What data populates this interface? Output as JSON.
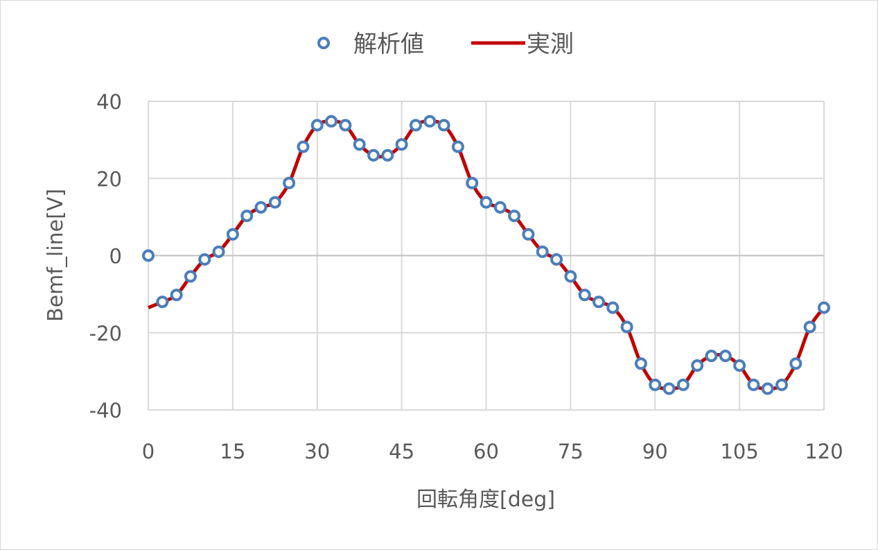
{
  "chart_data": {
    "type": "line",
    "title": "",
    "xlabel": "回転角度[deg]",
    "ylabel": "Bemf_line[V]",
    "xlim": [
      0,
      120
    ],
    "ylim": [
      -40,
      40
    ],
    "x_ticks": [
      0,
      15,
      30,
      45,
      60,
      75,
      90,
      105,
      120
    ],
    "y_ticks": [
      40,
      20,
      0,
      -20,
      -40
    ],
    "x_tick_labels": [
      "0",
      "15",
      "30",
      "45",
      "60",
      "75",
      "90",
      "105",
      "120"
    ],
    "y_tick_labels": [
      "40",
      "20",
      "0",
      "-20",
      "-40"
    ],
    "grid": true,
    "legend_position": "top",
    "series": [
      {
        "name": "解析値",
        "kind": "scatter",
        "marker": "open-circle",
        "color": "#4a7ebb",
        "x": [
          0,
          2.5,
          5,
          7.5,
          10,
          12.5,
          15,
          17.5,
          20,
          22.5,
          25,
          27.5,
          30,
          32.5,
          35,
          37.5,
          40,
          42.5,
          45,
          47.5,
          50,
          52.5,
          55,
          57.5,
          60,
          62.5,
          65,
          67.5,
          70,
          72.5,
          75,
          77.5,
          80,
          82.5,
          85,
          87.5,
          90,
          92.5,
          95,
          97.5,
          100,
          102.5,
          105,
          107.5,
          110,
          112.5,
          115,
          117.5,
          120
        ],
        "y": [
          0,
          -12,
          -10.2,
          -5.4,
          -1,
          1,
          5.5,
          10.3,
          12.5,
          13.8,
          18.8,
          28.2,
          33.8,
          34.8,
          33.8,
          28.8,
          26,
          26,
          28.8,
          33.8,
          34.8,
          33.8,
          28.2,
          18.8,
          13.8,
          12.5,
          10.3,
          5.5,
          1,
          -1,
          -5.4,
          -10.2,
          -12,
          -13.5,
          -18.5,
          -28,
          -33.5,
          -34.5,
          -33.5,
          -28.5,
          -26,
          -26,
          -28.5,
          -33.5,
          -34.5,
          -33.5,
          -28,
          -18.5,
          -13.5
        ]
      },
      {
        "name": "実測",
        "kind": "line",
        "color": "#c00000",
        "x": [
          0,
          2.5,
          5,
          7.5,
          10,
          12.5,
          15,
          17.5,
          20,
          22.5,
          25,
          27.5,
          30,
          32.5,
          35,
          37.5,
          40,
          42.5,
          45,
          47.5,
          50,
          52.5,
          55,
          57.5,
          60,
          62.5,
          65,
          67.5,
          70,
          72.5,
          75,
          77.5,
          80,
          82.5,
          85,
          87.5,
          90,
          92.5,
          95,
          97.5,
          100,
          102.5,
          105,
          107.5,
          110,
          112.5,
          115,
          117.5,
          120
        ],
        "y": [
          -13.5,
          -12,
          -10.2,
          -5.4,
          -1,
          1,
          5.5,
          10.3,
          12.5,
          13.8,
          18.8,
          28.2,
          33.8,
          34.8,
          33.8,
          28.8,
          26,
          26,
          28.8,
          33.8,
          34.8,
          33.8,
          28.2,
          18.8,
          13.8,
          12.5,
          10.3,
          5.5,
          1,
          -1,
          -5.4,
          -10.2,
          -12,
          -13.5,
          -18.5,
          -28,
          -33.5,
          -34.5,
          -33.5,
          -28.5,
          -26,
          -26,
          -28.5,
          -33.5,
          -34.5,
          -33.5,
          -28,
          -18.5,
          -13.5
        ]
      }
    ]
  }
}
